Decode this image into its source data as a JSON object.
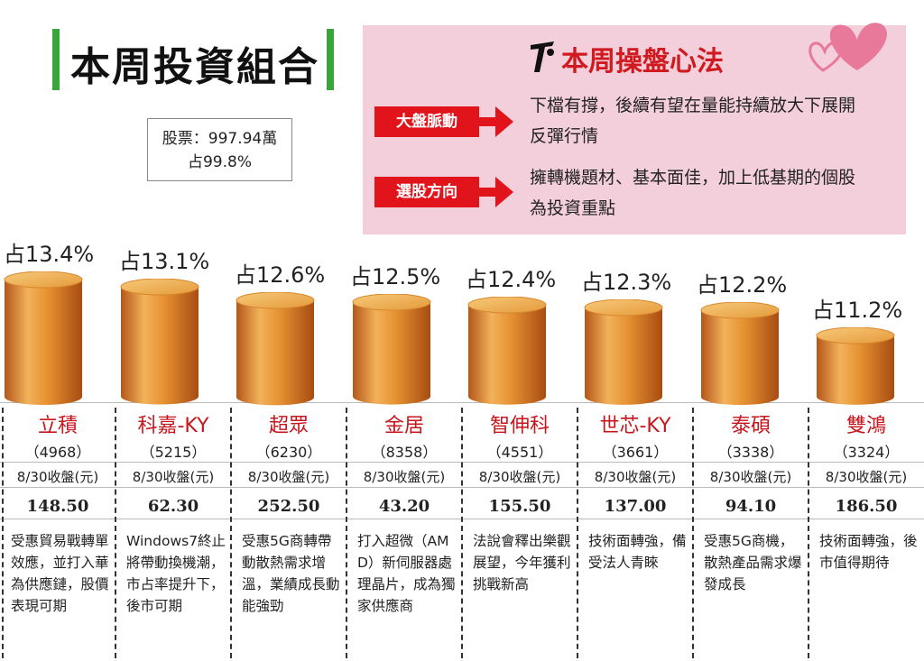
{
  "title": "本周投資組合",
  "stock_box": {
    "line1": "股票：997.94萬",
    "line2": "占99.8%"
  },
  "panel": {
    "title": "本周操盤心法",
    "tag1": "大盤脈動",
    "text1_l1": "下檔有撐，後續有望在量能持續放大下展開",
    "text1_l2": "反彈行情",
    "tag2": "選股方向",
    "text2_l1": "擁轉機題材、基本面佳，加上低基期的個股",
    "text2_l2": "為投資重點"
  },
  "colors": {
    "accent_red": "#d01a20",
    "green_bar": "#3aa63a",
    "panel_pink": "#f2cfdb",
    "gold": "#e08a2a"
  },
  "chart_data": {
    "type": "bar",
    "value_label": "8/30收盤(元)",
    "categories": [
      "立積",
      "科嘉-KY",
      "超眾",
      "金居",
      "智伸科",
      "世芯-KY",
      "泰碩",
      "雙鴻"
    ],
    "codes": [
      "（4968）",
      "（5215）",
      "（6230）",
      "（8358）",
      "（4551）",
      "（3661）",
      "（3338）",
      "（3324）"
    ],
    "pct_labels": [
      "占13.4%",
      "占13.1%",
      "占12.6%",
      "占12.5%",
      "占12.4%",
      "占12.3%",
      "占12.2%",
      "占11.2%"
    ],
    "values": [
      13.4,
      13.1,
      12.6,
      12.5,
      12.4,
      12.3,
      12.2,
      11.2
    ],
    "prices": [
      "148.50",
      "62.30",
      "252.50",
      "43.20",
      "155.50",
      "137.00",
      "94.10",
      "186.50"
    ],
    "descriptions": [
      "受惠貿易戰轉單效應，並打入華為供應鏈，股價表現可期",
      "Windows7終止將帶動換機潮，市占率提升下，後市可期",
      "受惠5G商轉帶動散熱需求增溫，業績成長動能強勁",
      "打入超微（AMD）新伺服器處理晶片，成為獨家供應商",
      "法說會釋出樂觀展望，今年獲利挑戰新高",
      "技術面轉強，備受法人青睞",
      "受惠5G商機，散熱產品需求爆發成長",
      "技術面轉強，後市值得期待"
    ]
  }
}
